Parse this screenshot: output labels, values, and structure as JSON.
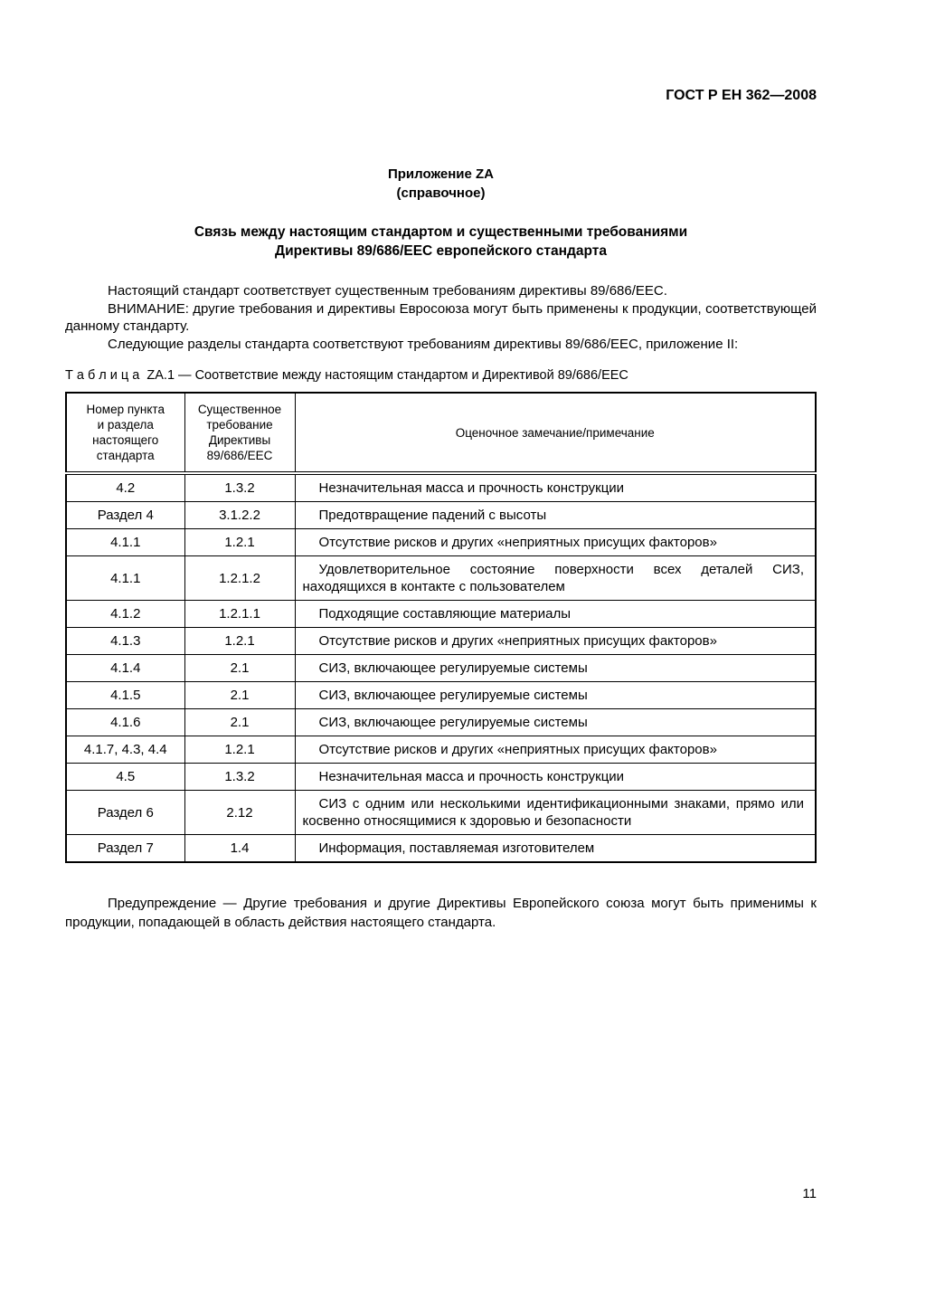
{
  "header": {
    "doc_number": "ГОСТ Р ЕН 362—2008"
  },
  "appendix": {
    "label": "Приложение ZA",
    "type": "(справочное)"
  },
  "title": {
    "line1": "Связь между настоящим стандартом и существенными требованиями",
    "line2": "Директивы 89/686/ЕЕС европейского стандарта"
  },
  "intro": {
    "p1": "Настоящий стандарт соответствует существенным требованиям директивы 89/686/ЕЕС.",
    "p2": "ВНИМАНИЕ:  другие требования и директивы Евросоюза могут быть применены к продукции, соответствующей данному стандарту.",
    "p3": "Следующие разделы стандарта соответствуют требованиям директивы 89/686/ЕЕС, приложение II:"
  },
  "table": {
    "caption_label": "Т а б л и ц а  ZA.1",
    "caption_text": "— Соответствие между настоящим стандартом и Директивой 89/686/ЕЕС",
    "headers": [
      "Номер пункта\nи раздела\nнастоящего\nстандарта",
      "Существенное\nтребование\nДирективы\n89/686/ЕЕС",
      "Оценочное замечание/примечание"
    ],
    "rows": [
      {
        "clause": "4.2",
        "requirement": "1.3.2",
        "note": "Незначительная масса и прочность конструкции"
      },
      {
        "clause": "Раздел 4",
        "requirement": "3.1.2.2",
        "note": "Предотвращение падений с высоты"
      },
      {
        "clause": "4.1.1",
        "requirement": "1.2.1",
        "note": "Отсутствие рисков и других «неприятных присущих факторов»"
      },
      {
        "clause": "4.1.1",
        "requirement": "1.2.1.2",
        "note": "Удовлетворительное состояние поверхности всех деталей СИЗ, находящихся в контакте с пользователем"
      },
      {
        "clause": "4.1.2",
        "requirement": "1.2.1.1",
        "note": "Подходящие составляющие материалы"
      },
      {
        "clause": "4.1.3",
        "requirement": "1.2.1",
        "note": "Отсутствие рисков и других «неприятных присущих факторов»"
      },
      {
        "clause": "4.1.4",
        "requirement": "2.1",
        "note": "СИЗ, включающее регулируемые системы"
      },
      {
        "clause": "4.1.5",
        "requirement": "2.1",
        "note": "СИЗ, включающее регулируемые системы"
      },
      {
        "clause": "4.1.6",
        "requirement": "2.1",
        "note": "СИЗ, включающее регулируемые системы"
      },
      {
        "clause": "4.1.7, 4.3, 4.4",
        "requirement": "1.2.1",
        "note": "Отсутствие рисков и других «неприятных присущих факторов»"
      },
      {
        "clause": "4.5",
        "requirement": "1.3.2",
        "note": "Незначительная масса и прочность конструкции"
      },
      {
        "clause": "Раздел 6",
        "requirement": "2.12",
        "note": "СИЗ с одним или несколькими идентификационными знаками, прямо или косвенно относящимися к здоровью и безопасности"
      },
      {
        "clause": "Раздел 7",
        "requirement": "1.4",
        "note": "Информация, поставляемая изготовителем"
      }
    ]
  },
  "footer": {
    "warning": "Предупреждение — Другие требования и другие Директивы Европейского союза могут быть применимы к продукции, попадающей в область действия настоящего стандарта.",
    "page_number": "11"
  }
}
